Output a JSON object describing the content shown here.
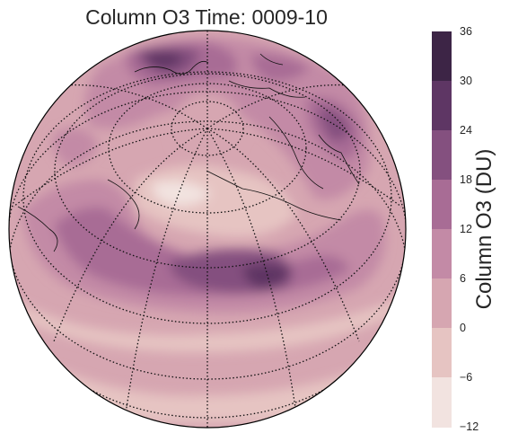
{
  "title": "Column O3 Time: 0009-10",
  "colorbar": {
    "label": "Column O3 (DU)",
    "ticks": [
      "36",
      "30",
      "24",
      "18",
      "12",
      "6",
      "0",
      "−6",
      "−12"
    ],
    "colors": [
      "#3d2546",
      "#5e3664",
      "#84507f",
      "#a86c95",
      "#c38aa6",
      "#d6a6b1",
      "#e6c4c2",
      "#f2e3e0"
    ]
  },
  "map": {
    "projection": "orthographic",
    "background_color": "#d6a6b1",
    "graticule": "dotted",
    "coastlines": true
  }
}
